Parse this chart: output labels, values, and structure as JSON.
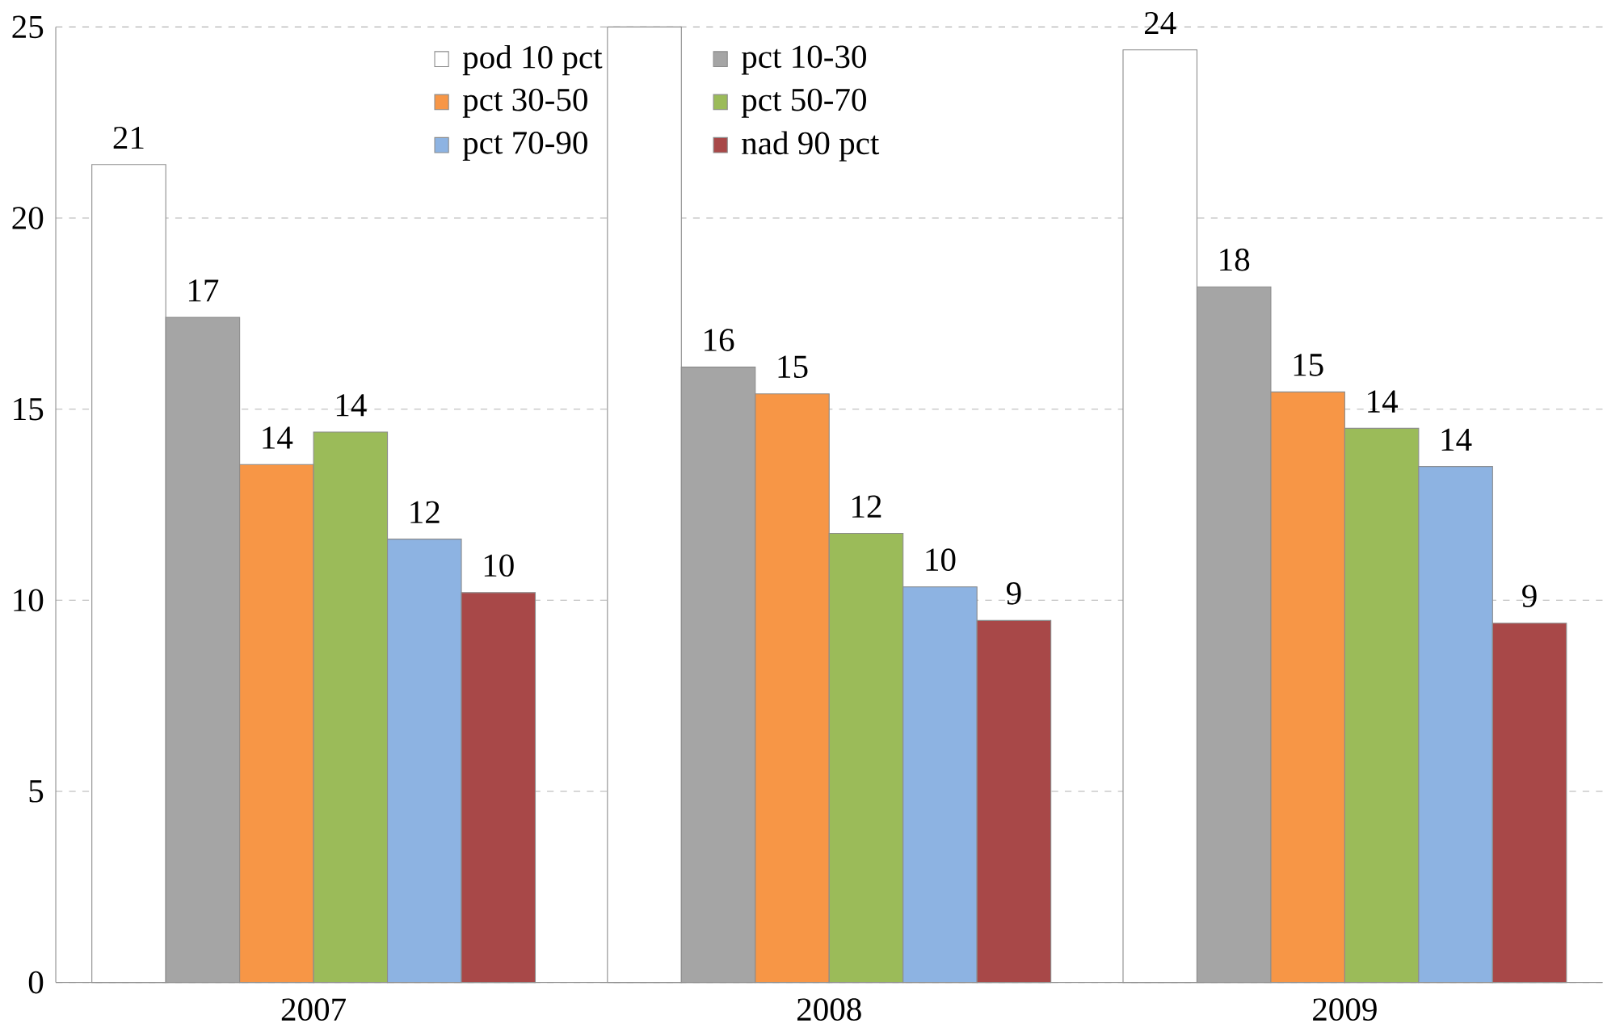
{
  "chart_data": {
    "type": "bar",
    "categories": [
      "2007",
      "2008",
      "2009"
    ],
    "series": [
      {
        "name": "pod 10 pct",
        "color": "#ffffff",
        "values": [
          21.4,
          25,
          24.4
        ],
        "value_labels": [
          "21",
          null,
          "24"
        ]
      },
      {
        "name": "pct 10-30",
        "color": "#a5a5a5",
        "values": [
          17.4,
          16.1,
          18.2
        ],
        "value_labels": [
          "17",
          "16",
          "18"
        ]
      },
      {
        "name": "pct 30-50",
        "color": "#f79646",
        "values": [
          13.55,
          15.4,
          15.45
        ],
        "value_labels": [
          "14",
          "15",
          "15"
        ]
      },
      {
        "name": "pct 50-70",
        "color": "#9bbb59",
        "values": [
          14.4,
          11.75,
          14.5
        ],
        "value_labels": [
          "14",
          "12",
          "14"
        ]
      },
      {
        "name": "pct 70-90",
        "color": "#8db3e2",
        "values": [
          11.6,
          10.35,
          13.5
        ],
        "value_labels": [
          "12",
          "10",
          "14"
        ]
      },
      {
        "name": "nad 90 pct",
        "color": "#a84848",
        "values": [
          10.2,
          9.47,
          9.4
        ],
        "value_labels": [
          "10",
          "9",
          "9"
        ]
      }
    ],
    "ylim": [
      0,
      25
    ],
    "yticks": [
      0,
      5,
      10,
      15,
      20,
      25
    ],
    "grid": "y",
    "legend": "top"
  }
}
